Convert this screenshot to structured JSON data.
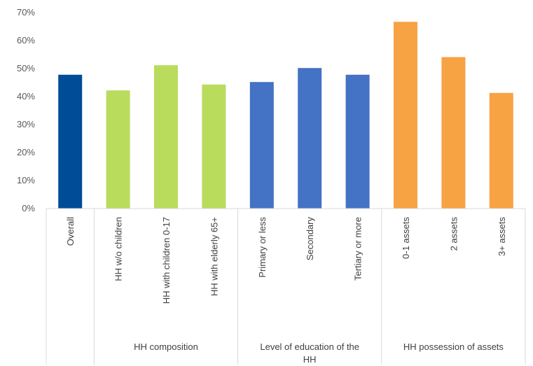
{
  "chart_data": {
    "type": "bar",
    "ylim": [
      0,
      0.7
    ],
    "y_ticks": [
      0,
      0.1,
      0.2,
      0.3,
      0.4,
      0.5,
      0.6,
      0.7
    ],
    "y_tick_labels": [
      "0%",
      "10%",
      "20%",
      "30%",
      "40%",
      "50%",
      "60%",
      "70%"
    ],
    "grid": false,
    "legend": "none",
    "categories": [
      "Overall",
      "HH w/o children",
      "HH with children 0-17",
      "HH with elderly 65+",
      "Primary or less",
      "Secondary",
      "Tertiary or more",
      "0-1 assets",
      "2 assets",
      "3+ assets"
    ],
    "values": [
      0.478,
      0.422,
      0.512,
      0.443,
      0.452,
      0.502,
      0.478,
      0.667,
      0.541,
      0.413
    ],
    "bar_colors": [
      "#004C97",
      "#B9DC5C",
      "#B9DC5C",
      "#B9DC5C",
      "#4472C4",
      "#4472C4",
      "#4472C4",
      "#F7A243",
      "#F7A243",
      "#F7A243"
    ],
    "groups": [
      {
        "label": "",
        "start": 0,
        "end": 0
      },
      {
        "label": "HH composition",
        "start": 1,
        "end": 3
      },
      {
        "label_lines": [
          "Level of education of the",
          "HH"
        ],
        "start": 4,
        "end": 6
      },
      {
        "label": "HH possession of assets",
        "start": 7,
        "end": 9
      }
    ]
  }
}
